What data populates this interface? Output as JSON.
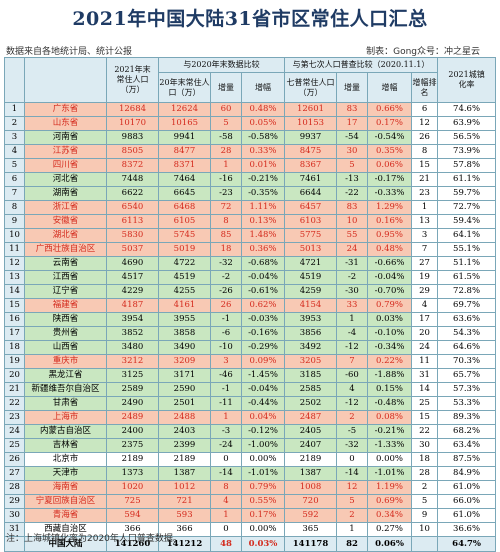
{
  "title": "2021年中国大陆31省市区常住人口汇总",
  "source_note": "数据来自各地统计局、统计公报",
  "credit": "制表：Gong众号：冲之星云",
  "footnote": "注：上海城镇化率为2020年人口普查数据。",
  "colors": {
    "increase_fill": "#f8c9b4",
    "decrease_fill": "#c9e7c1",
    "highlight_text": "#d42b1e",
    "header_fill": "#dcebf2",
    "border": "#7aa7b8",
    "title": "#1f3b64"
  },
  "headers": {
    "pop2021": "2021年末常住人口（万）",
    "vs2020": "与2020年末数据比较",
    "vs_census": "与第七次人口普查比较（2020.11.1）",
    "pop2020": "20年末常住人口（万）",
    "census": "七普常住人口（万）",
    "inc": "增量",
    "rate": "增幅",
    "rank": "增幅排名",
    "urban": "2021城镇化率"
  },
  "chart_data": {
    "type": "table",
    "columns": [
      "序号",
      "省份",
      "2021年末常住人口（万）",
      "20年末常住人口（万）",
      "增量",
      "增幅",
      "七普常住人口（万）",
      "增量",
      "增幅",
      "增幅排名",
      "2021城镇化率"
    ],
    "rows": [
      {
        "no": "1",
        "name": "广东省",
        "p21": "12684",
        "p20": "12624",
        "d1": "60",
        "r1": "0.48%",
        "p7": "12601",
        "d2": "83",
        "r2": "0.66%",
        "rank": "6",
        "urban": "74.6%",
        "t": "up"
      },
      {
        "no": "2",
        "name": "山东省",
        "p21": "10170",
        "p20": "10165",
        "d1": "5",
        "r1": "0.05%",
        "p7": "10153",
        "d2": "17",
        "r2": "0.17%",
        "rank": "12",
        "urban": "63.9%",
        "t": "up"
      },
      {
        "no": "3",
        "name": "河南省",
        "p21": "9883",
        "p20": "9941",
        "d1": "-58",
        "r1": "-0.58%",
        "p7": "9937",
        "d2": "-54",
        "r2": "-0.54%",
        "rank": "26",
        "urban": "56.5%",
        "t": "down"
      },
      {
        "no": "4",
        "name": "江苏省",
        "p21": "8505",
        "p20": "8477",
        "d1": "28",
        "r1": "0.33%",
        "p7": "8475",
        "d2": "30",
        "r2": "0.35%",
        "rank": "8",
        "urban": "73.9%",
        "t": "up"
      },
      {
        "no": "5",
        "name": "四川省",
        "p21": "8372",
        "p20": "8371",
        "d1": "1",
        "r1": "0.01%",
        "p7": "8367",
        "d2": "5",
        "r2": "0.06%",
        "rank": "15",
        "urban": "57.8%",
        "t": "up"
      },
      {
        "no": "6",
        "name": "河北省",
        "p21": "7448",
        "p20": "7464",
        "d1": "-16",
        "r1": "-0.21%",
        "p7": "7461",
        "d2": "-13",
        "r2": "-0.17%",
        "rank": "21",
        "urban": "61.1%",
        "t": "down"
      },
      {
        "no": "7",
        "name": "湖南省",
        "p21": "6622",
        "p20": "6645",
        "d1": "-23",
        "r1": "-0.35%",
        "p7": "6644",
        "d2": "-22",
        "r2": "-0.33%",
        "rank": "23",
        "urban": "59.7%",
        "t": "down"
      },
      {
        "no": "8",
        "name": "浙江省",
        "p21": "6540",
        "p20": "6468",
        "d1": "72",
        "r1": "1.11%",
        "p7": "6457",
        "d2": "83",
        "r2": "1.29%",
        "rank": "1",
        "urban": "72.7%",
        "t": "up"
      },
      {
        "no": "9",
        "name": "安徽省",
        "p21": "6113",
        "p20": "6105",
        "d1": "8",
        "r1": "0.13%",
        "p7": "6103",
        "d2": "10",
        "r2": "0.16%",
        "rank": "13",
        "urban": "59.4%",
        "t": "up"
      },
      {
        "no": "10",
        "name": "湖北省",
        "p21": "5830",
        "p20": "5745",
        "d1": "85",
        "r1": "1.48%",
        "p7": "5775",
        "d2": "55",
        "r2": "0.95%",
        "rank": "3",
        "urban": "64.1%",
        "t": "up"
      },
      {
        "no": "11",
        "name": "广西壮族自治区",
        "p21": "5037",
        "p20": "5019",
        "d1": "18",
        "r1": "0.36%",
        "p7": "5013",
        "d2": "24",
        "r2": "0.48%",
        "rank": "7",
        "urban": "55.1%",
        "t": "up"
      },
      {
        "no": "12",
        "name": "云南省",
        "p21": "4690",
        "p20": "4722",
        "d1": "-32",
        "r1": "-0.68%",
        "p7": "4721",
        "d2": "-31",
        "r2": "-0.66%",
        "rank": "27",
        "urban": "51.1%",
        "t": "down"
      },
      {
        "no": "13",
        "name": "江西省",
        "p21": "4517",
        "p20": "4519",
        "d1": "-2",
        "r1": "-0.04%",
        "p7": "4519",
        "d2": "-2",
        "r2": "-0.04%",
        "rank": "19",
        "urban": "61.5%",
        "t": "down"
      },
      {
        "no": "14",
        "name": "辽宁省",
        "p21": "4229",
        "p20": "4255",
        "d1": "-26",
        "r1": "-0.61%",
        "p7": "4259",
        "d2": "-30",
        "r2": "-0.70%",
        "rank": "29",
        "urban": "72.8%",
        "t": "down"
      },
      {
        "no": "15",
        "name": "福建省",
        "p21": "4187",
        "p20": "4161",
        "d1": "26",
        "r1": "0.62%",
        "p7": "4154",
        "d2": "33",
        "r2": "0.79%",
        "rank": "4",
        "urban": "69.7%",
        "t": "up"
      },
      {
        "no": "16",
        "name": "陕西省",
        "p21": "3954",
        "p20": "3955",
        "d1": "-1",
        "r1": "-0.03%",
        "p7": "3953",
        "d2": "1",
        "r2": "0.03%",
        "rank": "17",
        "urban": "63.6%",
        "t": "down"
      },
      {
        "no": "17",
        "name": "贵州省",
        "p21": "3852",
        "p20": "3858",
        "d1": "-6",
        "r1": "-0.16%",
        "p7": "3856",
        "d2": "-4",
        "r2": "-0.10%",
        "rank": "20",
        "urban": "54.3%",
        "t": "down"
      },
      {
        "no": "18",
        "name": "山西省",
        "p21": "3480",
        "p20": "3490",
        "d1": "-10",
        "r1": "-0.29%",
        "p7": "3492",
        "d2": "-12",
        "r2": "-0.34%",
        "rank": "24",
        "urban": "64.6%",
        "t": "down"
      },
      {
        "no": "19",
        "name": "重庆市",
        "p21": "3212",
        "p20": "3209",
        "d1": "3",
        "r1": "0.09%",
        "p7": "3205",
        "d2": "7",
        "r2": "0.22%",
        "rank": "11",
        "urban": "70.3%",
        "t": "up"
      },
      {
        "no": "20",
        "name": "黑龙江省",
        "p21": "3125",
        "p20": "3171",
        "d1": "-46",
        "r1": "-1.45%",
        "p7": "3185",
        "d2": "-60",
        "r2": "-1.88%",
        "rank": "31",
        "urban": "65.7%",
        "t": "down"
      },
      {
        "no": "21",
        "name": "新疆维吾尔自治区",
        "p21": "2589",
        "p20": "2590",
        "d1": "-1",
        "r1": "-0.04%",
        "p7": "2585",
        "d2": "4",
        "r2": "0.15%",
        "rank": "14",
        "urban": "57.3%",
        "t": "down"
      },
      {
        "no": "22",
        "name": "甘肃省",
        "p21": "2490",
        "p20": "2501",
        "d1": "-11",
        "r1": "-0.44%",
        "p7": "2502",
        "d2": "-12",
        "r2": "-0.48%",
        "rank": "25",
        "urban": "53.3%",
        "t": "down"
      },
      {
        "no": "23",
        "name": "上海市",
        "p21": "2489",
        "p20": "2488",
        "d1": "1",
        "r1": "0.04%",
        "p7": "2487",
        "d2": "2",
        "r2": "0.08%",
        "rank": "15",
        "urban": "89.3%",
        "t": "up"
      },
      {
        "no": "24",
        "name": "内蒙古自治区",
        "p21": "2400",
        "p20": "2403",
        "d1": "-3",
        "r1": "-0.12%",
        "p7": "2405",
        "d2": "-5",
        "r2": "-0.21%",
        "rank": "22",
        "urban": "68.2%",
        "t": "down"
      },
      {
        "no": "25",
        "name": "吉林省",
        "p21": "2375",
        "p20": "2399",
        "d1": "-24",
        "r1": "-1.00%",
        "p7": "2407",
        "d2": "-32",
        "r2": "-1.33%",
        "rank": "30",
        "urban": "63.4%",
        "t": "down"
      },
      {
        "no": "26",
        "name": "北京市",
        "p21": "2189",
        "p20": "2189",
        "d1": "0",
        "r1": "0.00%",
        "p7": "2189",
        "d2": "0",
        "r2": "0.00%",
        "rank": "18",
        "urban": "87.5%",
        "t": "flat"
      },
      {
        "no": "27",
        "name": "天津市",
        "p21": "1373",
        "p20": "1387",
        "d1": "-14",
        "r1": "-1.01%",
        "p7": "1387",
        "d2": "-14",
        "r2": "-1.01%",
        "rank": "28",
        "urban": "84.9%",
        "t": "down"
      },
      {
        "no": "28",
        "name": "海南省",
        "p21": "1020",
        "p20": "1012",
        "d1": "8",
        "r1": "0.79%",
        "p7": "1008",
        "d2": "12",
        "r2": "1.19%",
        "rank": "2",
        "urban": "61.0%",
        "t": "up"
      },
      {
        "no": "29",
        "name": "宁夏回族自治区",
        "p21": "725",
        "p20": "721",
        "d1": "4",
        "r1": "0.55%",
        "p7": "720",
        "d2": "5",
        "r2": "0.69%",
        "rank": "5",
        "urban": "66.0%",
        "t": "up"
      },
      {
        "no": "30",
        "name": "青海省",
        "p21": "594",
        "p20": "593",
        "d1": "1",
        "r1": "0.17%",
        "p7": "592",
        "d2": "2",
        "r2": "0.34%",
        "rank": "9",
        "urban": "61.0%",
        "t": "up"
      },
      {
        "no": "31",
        "name": "西藏自治区",
        "p21": "366",
        "p20": "366",
        "d1": "0",
        "r1": "0.00%",
        "p7": "365",
        "d2": "1",
        "r2": "0.27%",
        "rank": "10",
        "urban": "36.6%",
        "t": "flat"
      }
    ],
    "total": {
      "no": "",
      "name": "中国大陆",
      "p21": "141260",
      "p20": "141212",
      "d1": "48",
      "r1": "0.03%",
      "p7": "141178",
      "d2": "82",
      "r2": "0.06%",
      "rank": "",
      "urban": "64.7%"
    }
  }
}
